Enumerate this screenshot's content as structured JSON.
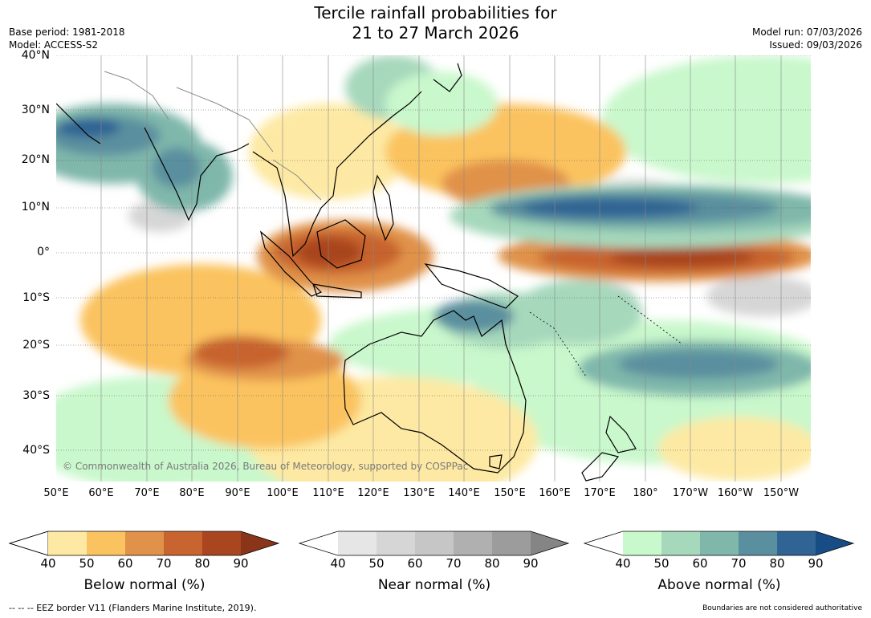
{
  "title_line1": "Tercile rainfall probabilities for",
  "title_line2": "21 to 27 March 2026",
  "base_period": "Base period: 1981-2018",
  "model": "Model: ACCESS-S2",
  "model_run": "Model run: 07/03/2026",
  "issued": "Issued: 09/03/2026",
  "copyright": "© Commonwealth of Australia 2026, Bureau of Meteorology, supported by COSPPac",
  "lat_labels": [
    "40°N",
    "30°N",
    "20°N",
    "10°N",
    "0°",
    "10°S",
    "20°S",
    "30°S",
    "40°S"
  ],
  "lon_labels": [
    "50°E",
    "60°E",
    "70°E",
    "80°E",
    "90°E",
    "100°E",
    "110°E",
    "120°E",
    "130°E",
    "140°E",
    "150°E",
    "160°E",
    "170°E",
    "180°",
    "170°W",
    "160°W",
    "150°W"
  ],
  "colorbars": [
    {
      "title": "Below normal (%)",
      "ticks": [
        "40",
        "50",
        "60",
        "70",
        "80",
        "90"
      ],
      "colors": [
        "#ffffff",
        "#fde9a3",
        "#fbc35f",
        "#e0924a",
        "#c8642f",
        "#a9451f",
        "#8a3419"
      ]
    },
    {
      "title": "Near normal (%)",
      "ticks": [
        "40",
        "50",
        "60",
        "70",
        "80",
        "90"
      ],
      "colors": [
        "#ffffff",
        "#e6e6e6",
        "#d6d6d6",
        "#c6c6c6",
        "#b0b0b0",
        "#9c9c9c",
        "#858585"
      ]
    },
    {
      "title": "Above normal (%)",
      "ticks": [
        "40",
        "50",
        "60",
        "70",
        "80",
        "90"
      ],
      "colors": [
        "#ffffff",
        "#c9f8cc",
        "#a6d8bc",
        "#7fb7ab",
        "#5a8f9f",
        "#2f6494",
        "#174d84"
      ]
    }
  ],
  "footer_left": "--  --  -- EEZ border V11 (Flanders Marine Institute, 2019).",
  "footer_right": "Boundaries are not considered authoritative"
}
